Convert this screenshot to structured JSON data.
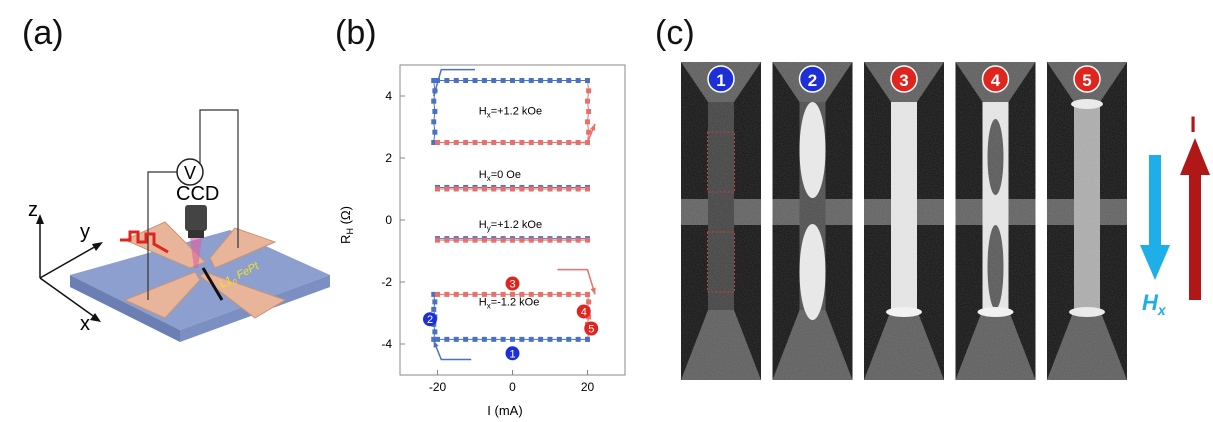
{
  "panels": {
    "a": "(a)",
    "b": "(b)",
    "c": "(c)"
  },
  "device": {
    "voltmeter": "V",
    "camera": "CCD",
    "axis_z": "z",
    "axis_y": "y",
    "axis_x": "x",
    "material_main": "L1",
    "material_sub": "0",
    "material_rest": " FePt",
    "colors": {
      "substrate": "#8c9fce",
      "pads": "#e8b49a",
      "pulse": "#e0241e",
      "label": "#f5e21c"
    }
  },
  "chart_data": {
    "type": "line",
    "xlabel": "I (mA)",
    "ylabel": "R",
    "ylabel_sub": "H",
    "ylabel_unit": " (Ω)",
    "xlim": [
      -30,
      30
    ],
    "ylim": [
      -5,
      5
    ],
    "xticks": [
      "-20",
      "0",
      "20"
    ],
    "yticks": [
      "-4",
      "-2",
      "0",
      "2",
      "4"
    ],
    "xtick_values": [
      -20,
      0,
      20
    ],
    "ytick_values": [
      -4,
      -2,
      0,
      2,
      4
    ],
    "colors": {
      "blue": "#4a72c4",
      "red": "#e8706a"
    },
    "loops": [
      {
        "label_main": "H",
        "label_sub": "x",
        "label_rest": "=+1.2 kOe",
        "label_x": -9,
        "label_y": 3.4,
        "high": 4.5,
        "low": 2.5,
        "switch_neg": -20,
        "switch_pos": 18
      },
      {
        "label_main": "H",
        "label_sub": "x",
        "label_rest": "=0 Oe",
        "label_x": -9,
        "label_y": 1.35,
        "high": 1.05,
        "low": 1.0,
        "switch_neg": -20,
        "switch_pos": 20
      },
      {
        "label_main": "H",
        "label_sub": "y",
        "label_rest": "=+1.2 kOe",
        "label_x": -9,
        "label_y": -0.25,
        "high": -0.6,
        "low": -0.65,
        "switch_neg": -20,
        "switch_pos": 20
      },
      {
        "label_main": "H",
        "label_sub": "x",
        "label_rest": "=-1.2 kOe",
        "label_x": -9,
        "label_y": -2.75,
        "high": -2.4,
        "low": -3.85,
        "switch_neg": -20,
        "switch_pos": 18
      }
    ],
    "markers": [
      {
        "label": "1",
        "x": 0,
        "y": -4.3,
        "color": "#1d2fd6"
      },
      {
        "label": "2",
        "x": -22,
        "y": -3.2,
        "color": "#1d2fd6"
      },
      {
        "label": "3",
        "x": 0,
        "y": -2.05,
        "color": "#e0241e"
      },
      {
        "label": "4",
        "x": 19,
        "y": -2.95,
        "color": "#e0241e"
      },
      {
        "label": "5",
        "x": 21,
        "y": -3.5,
        "color": "#e0241e"
      }
    ]
  },
  "moke": {
    "frames": [
      {
        "label": "1",
        "color": "#1d2fd6",
        "state": "dark"
      },
      {
        "label": "2",
        "color": "#1d2fd6",
        "state": "partial"
      },
      {
        "label": "3",
        "color": "#e0241e",
        "state": "bright"
      },
      {
        "label": "4",
        "color": "#e0241e",
        "state": "bright-dark-core"
      },
      {
        "label": "5",
        "color": "#e0241e",
        "state": "speckled"
      }
    ],
    "field_label_main": "H",
    "field_label_sub": "x",
    "current_label": "I",
    "colors": {
      "field": "#1eaee8",
      "current": "#b01818"
    }
  }
}
